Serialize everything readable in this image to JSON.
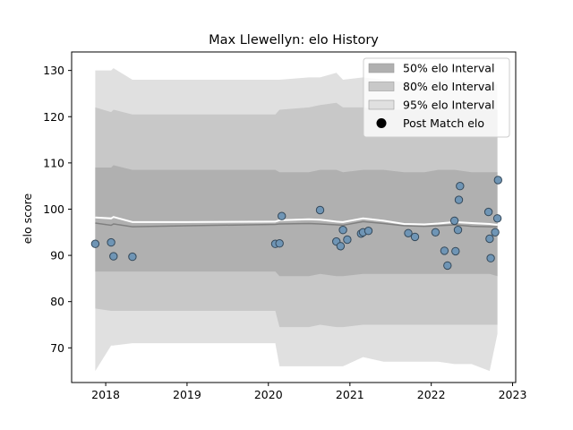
{
  "chart_data": {
    "type": "line",
    "title": "Max Llewellyn: elo History",
    "xlabel": "",
    "ylabel": "elo score",
    "xlim": [
      "2017-08-01",
      "2023-01-15"
    ],
    "ylim": [
      62.5,
      134
    ],
    "x_ticks": [
      "2018",
      "2019",
      "2020",
      "2021",
      "2022",
      "2023"
    ],
    "y_ticks": [
      70,
      80,
      90,
      100,
      110,
      120,
      130
    ],
    "grid": false,
    "legend_placement": "top-right",
    "legend": [
      {
        "label": "50% elo Interval",
        "kind": "band",
        "color": "#b0b0b0"
      },
      {
        "label": "80% elo Interval",
        "kind": "band",
        "color": "#c8c8c8"
      },
      {
        "label": "95% elo Interval",
        "kind": "band",
        "color": "#e0e0e0"
      },
      {
        "label": "Post Match elo",
        "kind": "point",
        "color": "#000000"
      }
    ],
    "colors": {
      "band50": "#b0b0b0",
      "band80": "#c8c8c8",
      "band95": "#e0e0e0",
      "mean_line": "#ffffff",
      "median_line": "#808080",
      "point_fill": "#6f95b5",
      "point_edge": "#35495a"
    },
    "series": [
      {
        "name": "95% elo Interval",
        "x": [
          "2017-11-15",
          "2018-01-25",
          "2018-02-05",
          "2018-05-01",
          "2019-01-01",
          "2020-02-01",
          "2020-02-20",
          "2020-07-01",
          "2020-08-20",
          "2020-11-01",
          "2020-12-01",
          "2021-03-01",
          "2021-06-01",
          "2021-09-01",
          "2021-12-01",
          "2022-02-01",
          "2022-04-15",
          "2022-07-01",
          "2022-09-20",
          "2022-10-25"
        ],
        "upper": [
          130,
          130,
          130.5,
          128,
          128,
          128,
          128,
          128.5,
          128.5,
          129.5,
          128,
          128.5,
          128,
          127.5,
          128,
          128,
          128,
          127.5,
          127,
          127
        ],
        "lower": [
          65,
          70.5,
          70.5,
          71,
          71,
          71,
          66,
          66,
          66,
          66,
          66,
          68,
          67,
          67,
          67,
          67,
          66.5,
          66.5,
          65,
          73
        ]
      },
      {
        "name": "80% elo Interval",
        "x": [
          "2017-11-15",
          "2018-01-25",
          "2018-02-05",
          "2018-05-01",
          "2019-01-01",
          "2020-02-01",
          "2020-02-20",
          "2020-07-01",
          "2020-08-20",
          "2020-11-01",
          "2020-12-01",
          "2021-03-01",
          "2021-06-01",
          "2021-09-01",
          "2021-12-01",
          "2022-02-01",
          "2022-04-15",
          "2022-07-01",
          "2022-09-20",
          "2022-10-25"
        ],
        "upper": [
          122,
          121,
          121.5,
          120.5,
          120.5,
          120.5,
          121.5,
          122,
          122.5,
          123,
          122,
          122,
          121.5,
          121.5,
          121.5,
          122,
          122,
          121.5,
          121.5,
          121.5
        ],
        "lower": [
          78.5,
          78,
          78,
          78,
          78,
          78,
          74.5,
          74.5,
          75,
          74.5,
          74.5,
          75,
          75,
          75,
          75,
          75,
          75,
          75,
          75,
          75
        ]
      },
      {
        "name": "50% elo Interval",
        "x": [
          "2017-11-15",
          "2018-01-25",
          "2018-02-05",
          "2018-05-01",
          "2019-01-01",
          "2020-02-01",
          "2020-02-20",
          "2020-07-01",
          "2020-08-20",
          "2020-11-01",
          "2020-12-01",
          "2021-03-01",
          "2021-06-01",
          "2021-09-01",
          "2021-12-01",
          "2022-02-01",
          "2022-04-15",
          "2022-07-01",
          "2022-09-20",
          "2022-10-25"
        ],
        "upper": [
          109,
          109,
          109.5,
          108.5,
          108.5,
          108.5,
          108,
          108,
          108.5,
          108.5,
          108,
          108.5,
          108.5,
          108,
          108,
          108.5,
          108.5,
          108,
          108,
          108
        ],
        "lower": [
          86.5,
          86.5,
          86.5,
          86.5,
          86.5,
          86.5,
          85.5,
          85.5,
          86,
          85.5,
          85.5,
          86,
          86,
          86,
          86,
          86,
          86,
          86,
          86,
          85.5
        ]
      },
      {
        "name": "mean",
        "x": [
          "2017-11-15",
          "2018-01-25",
          "2018-02-05",
          "2018-05-01",
          "2019-01-01",
          "2020-02-01",
          "2020-02-20",
          "2020-07-01",
          "2020-08-20",
          "2020-11-01",
          "2020-12-01",
          "2021-03-01",
          "2021-06-01",
          "2021-09-01",
          "2021-12-01",
          "2022-02-01",
          "2022-04-15",
          "2022-07-01",
          "2022-09-20",
          "2022-10-25"
        ],
        "y": [
          98.2,
          98,
          98.3,
          97.2,
          97.2,
          97.3,
          97.6,
          97.8,
          97.7,
          97.3,
          97.2,
          98,
          97.5,
          96.8,
          96.7,
          96.9,
          97.2,
          97,
          96.8,
          96.6
        ]
      },
      {
        "name": "median",
        "x": [
          "2017-11-15",
          "2018-01-25",
          "2018-02-05",
          "2018-05-01",
          "2019-01-01",
          "2020-02-01",
          "2020-02-20",
          "2020-07-01",
          "2020-08-20",
          "2020-11-01",
          "2020-12-01",
          "2021-03-01",
          "2021-06-01",
          "2021-09-01",
          "2021-12-01",
          "2022-02-01",
          "2022-04-15",
          "2022-07-01",
          "2022-09-20",
          "2022-10-25"
        ],
        "y": [
          97,
          96.5,
          96.8,
          96.2,
          96.4,
          96.7,
          96.8,
          96.9,
          96.8,
          96.6,
          96.5,
          97.3,
          96.9,
          96.4,
          96.3,
          96.4,
          96.6,
          96.3,
          96.2,
          96.2
        ]
      },
      {
        "name": "Post Match elo",
        "kind": "points",
        "x": [
          "2017-11-15",
          "2018-01-25",
          "2018-02-05",
          "2018-05-01",
          "2020-02-01",
          "2020-02-20",
          "2020-03-01",
          "2020-08-20",
          "2020-11-01",
          "2020-11-20",
          "2020-12-01",
          "2020-12-20",
          "2021-02-20",
          "2021-03-01",
          "2021-03-25",
          "2021-09-20",
          "2021-10-20",
          "2022-01-20",
          "2022-03-01",
          "2022-03-15",
          "2022-04-15",
          "2022-04-20",
          "2022-05-01",
          "2022-05-05",
          "2022-05-10",
          "2022-09-15",
          "2022-09-20",
          "2022-09-25",
          "2022-10-15",
          "2022-10-25",
          "2022-10-28"
        ],
        "y": [
          92.5,
          92.8,
          89.8,
          89.7,
          92.5,
          92.6,
          98.5,
          99.8,
          93,
          92,
          95.5,
          93.4,
          94.7,
          95,
          95.3,
          94.8,
          94,
          95,
          91,
          87.8,
          97.5,
          90.9,
          95.5,
          102,
          105,
          99.4,
          93.6,
          89.4,
          95,
          98,
          106.3
        ]
      }
    ]
  }
}
